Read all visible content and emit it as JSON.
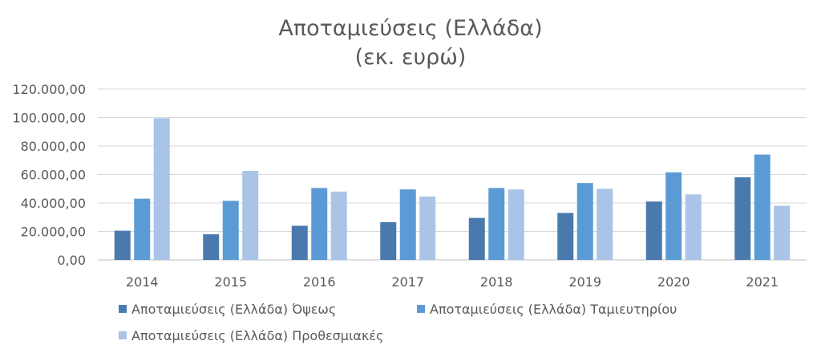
{
  "chart_data": {
    "type": "bar",
    "title": "Αποταμιεύσεις (Ελλάδα)",
    "subtitle": "(εκ. ευρώ)",
    "categories": [
      "2014",
      "2015",
      "2016",
      "2017",
      "2018",
      "2019",
      "2020",
      "2021"
    ],
    "series": [
      {
        "name": "Αποταμιεύσεις (Ελλάδα) Όψεως",
        "color": "#4a7aad",
        "values": [
          20500,
          18000,
          24000,
          26500,
          29500,
          33000,
          41000,
          58000
        ]
      },
      {
        "name": "Αποταμιεύσεις (Ελλάδα) Ταμιευτηρίου",
        "color": "#5b9bd5",
        "values": [
          43000,
          41500,
          50500,
          49500,
          50500,
          54000,
          61500,
          74000
        ]
      },
      {
        "name": "Αποταμιεύσεις (Ελλάδα) Προθεσμιακές",
        "color": "#a9c4e6",
        "values": [
          99500,
          62500,
          48000,
          44500,
          49500,
          50000,
          46000,
          38000
        ]
      }
    ],
    "ylim": [
      0,
      120000
    ],
    "yticks": [
      "0,00",
      "20.000,00",
      "40.000,00",
      "60.000,00",
      "80.000,00",
      "100.000,00",
      "120.000,00"
    ],
    "grid": true,
    "legend": "bottom"
  }
}
